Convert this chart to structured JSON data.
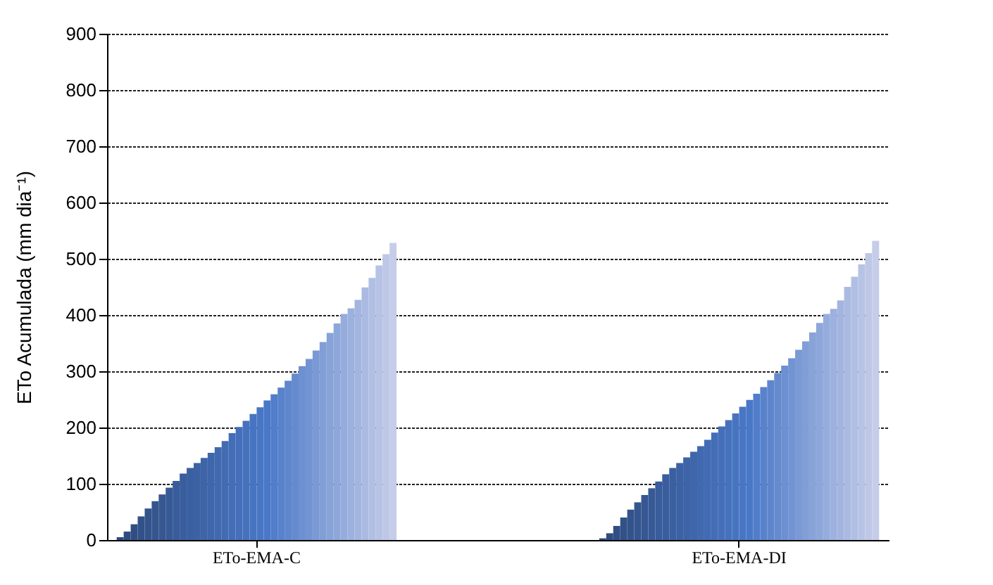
{
  "chart_data": {
    "type": "bar",
    "ylabel": "ETo Acumulada (mm dia⁻¹)",
    "categories": [
      "ETo-EMA-C",
      "ETo-EMA-DI"
    ],
    "ylim": [
      0,
      900
    ],
    "yticks": [
      0,
      100,
      200,
      300,
      400,
      500,
      600,
      700,
      800,
      900
    ],
    "grid": "y",
    "legend": false,
    "series": [
      {
        "color": "#2e4a7d",
        "values": [
          5,
          3
        ]
      },
      {
        "color": "#2f4c81",
        "values": [
          15,
          12
        ]
      },
      {
        "color": "#314e84",
        "values": [
          28,
          25
        ]
      },
      {
        "color": "#325188",
        "values": [
          42,
          40
        ]
      },
      {
        "color": "#33538b",
        "values": [
          56,
          54
        ]
      },
      {
        "color": "#35558f",
        "values": [
          69,
          67
        ]
      },
      {
        "color": "#365792",
        "values": [
          81,
          80
        ]
      },
      {
        "color": "#375996",
        "values": [
          93,
          92
        ]
      },
      {
        "color": "#395c9a",
        "values": [
          105,
          104
        ]
      },
      {
        "color": "#3a5e9d",
        "values": [
          118,
          117
        ]
      },
      {
        "color": "#3b60a1",
        "values": [
          128,
          128
        ]
      },
      {
        "color": "#3d62a4",
        "values": [
          137,
          137
        ]
      },
      {
        "color": "#3e64a8",
        "values": [
          146,
          147
        ]
      },
      {
        "color": "#3f66ab",
        "values": [
          155,
          157
        ]
      },
      {
        "color": "#4169af",
        "values": [
          165,
          167
        ]
      },
      {
        "color": "#426bb3",
        "values": [
          176,
          178
        ]
      },
      {
        "color": "#436db6",
        "values": [
          190,
          191
        ]
      },
      {
        "color": "#456fba",
        "values": [
          201,
          202
        ]
      },
      {
        "color": "#4671bd",
        "values": [
          212,
          213
        ]
      },
      {
        "color": "#4774c1",
        "values": [
          224,
          225
        ]
      },
      {
        "color": "#4976c4",
        "values": [
          236,
          237
        ]
      },
      {
        "color": "#4a78c8",
        "values": [
          248,
          249
        ]
      },
      {
        "color": "#517dca",
        "values": [
          259,
          260
        ]
      },
      {
        "color": "#5882cc",
        "values": [
          271,
          272
        ]
      },
      {
        "color": "#5f86cd",
        "values": [
          283,
          284
        ]
      },
      {
        "color": "#658bcf",
        "values": [
          296,
          297
        ]
      },
      {
        "color": "#6c90d1",
        "values": [
          309,
          310
        ]
      },
      {
        "color": "#7394d3",
        "values": [
          322,
          323
        ]
      },
      {
        "color": "#7a99d5",
        "values": [
          337,
          338
        ]
      },
      {
        "color": "#819ed6",
        "values": [
          352,
          353
        ]
      },
      {
        "color": "#88a3d8",
        "values": [
          368,
          369
        ]
      },
      {
        "color": "#8ea7da",
        "values": [
          385,
          386
        ]
      },
      {
        "color": "#95acdc",
        "values": [
          402,
          402
        ]
      },
      {
        "color": "#9cb1de",
        "values": [
          412,
          411
        ]
      },
      {
        "color": "#a3b5df",
        "values": [
          427,
          426
        ]
      },
      {
        "color": "#aabae1",
        "values": [
          449,
          450
        ]
      },
      {
        "color": "#b0bfe3",
        "values": [
          466,
          468
        ]
      },
      {
        "color": "#b7c3e5",
        "values": [
          488,
          490
        ]
      },
      {
        "color": "#bec8e6",
        "values": [
          508,
          510
        ]
      },
      {
        "color": "#c5cde8",
        "values": [
          528,
          532
        ]
      }
    ]
  }
}
